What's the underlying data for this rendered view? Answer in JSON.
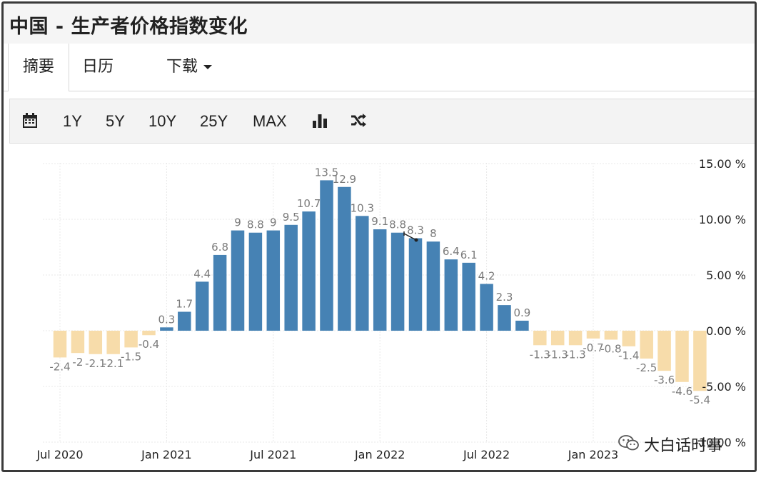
{
  "title": "中国 - 生产者价格指数变化",
  "tabs": [
    {
      "label": "摘要",
      "active": true
    },
    {
      "label": "日历",
      "active": false
    },
    {
      "label": "下载",
      "active": false
    }
  ],
  "toolbar": {
    "calendar_icon": "calendar-icon",
    "ranges": [
      "1Y",
      "5Y",
      "10Y",
      "25Y",
      "MAX"
    ],
    "chart_type_icon": "bar-chart-icon",
    "shuffle_icon": "shuffle-icon"
  },
  "watermark": {
    "icon": "wechat-icon",
    "text": "大白话时事"
  },
  "colors": {
    "positive": "#4682b4",
    "negative": "#f7dcaa",
    "label": "#7a7a7a"
  },
  "chart_data": {
    "type": "bar",
    "series": [
      {
        "values": [
          -2.4,
          -2.0,
          -2.1,
          -2.1,
          -1.5,
          -0.4,
          0.3,
          1.7,
          4.4,
          6.8,
          9.0,
          8.8,
          9.0,
          9.5,
          10.7,
          13.5,
          12.9,
          10.3,
          9.1,
          8.8,
          8.3,
          8.0,
          6.4,
          6.1,
          4.2,
          2.3,
          0.9,
          -1.3,
          -1.3,
          -1.3,
          -0.7,
          -0.8,
          -1.4,
          -2.5,
          -3.6,
          -4.6,
          -5.4
        ],
        "labels": [
          "-2.4",
          "-2",
          "-2.1",
          "-2.1",
          "-1.5",
          "-0.4",
          "0.3",
          "1.7",
          "4.4",
          "6.8",
          "9",
          "8.8",
          "9",
          "9.5",
          "10.7",
          "13.5",
          "12.9",
          "10.3",
          "9.1",
          "8.8",
          "8.3",
          "8",
          "6.4",
          "6.1",
          "4.2",
          "2.3",
          "0.9",
          "-1.3",
          "-1.3",
          "-1.3",
          "-0.7",
          "-0.8",
          "-1.4",
          "-2.5",
          "-3.6",
          "-4.6",
          "-5.4"
        ]
      }
    ],
    "x_ticks": [
      "Jul 2020",
      "Jan 2021",
      "Jul 2021",
      "Jan 2022",
      "Jul 2022",
      "Jan 2023"
    ],
    "x_tick_index": [
      0,
      6,
      12,
      18,
      24,
      30
    ],
    "y_ticks": [
      "15.00 %",
      "10.00 %",
      "5.00 %",
      "0.00 %",
      "-5.00 %",
      "-10.00 %"
    ],
    "y_tick_values": [
      15,
      10,
      5,
      0,
      -5,
      -10
    ],
    "ylim": [
      -10,
      15
    ],
    "y_axis_side": "right",
    "grid": true
  }
}
